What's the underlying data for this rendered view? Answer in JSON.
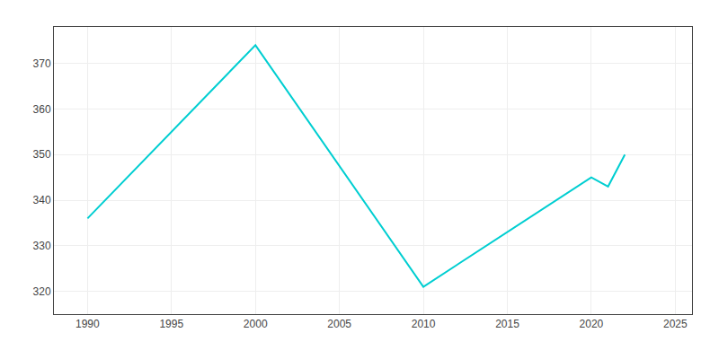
{
  "chart_data": {
    "type": "line",
    "x": [
      1990,
      2000,
      2010,
      2020,
      2021,
      2022
    ],
    "values": [
      336,
      374,
      321,
      345,
      343,
      350
    ],
    "color": "#00CED1",
    "xlim": [
      1988,
      2026
    ],
    "ylim": [
      315,
      378
    ],
    "xticks": [
      1990,
      1995,
      2000,
      2005,
      2010,
      2015,
      2020,
      2025
    ],
    "yticks": [
      320,
      330,
      340,
      350,
      360,
      370
    ],
    "grid": true
  }
}
